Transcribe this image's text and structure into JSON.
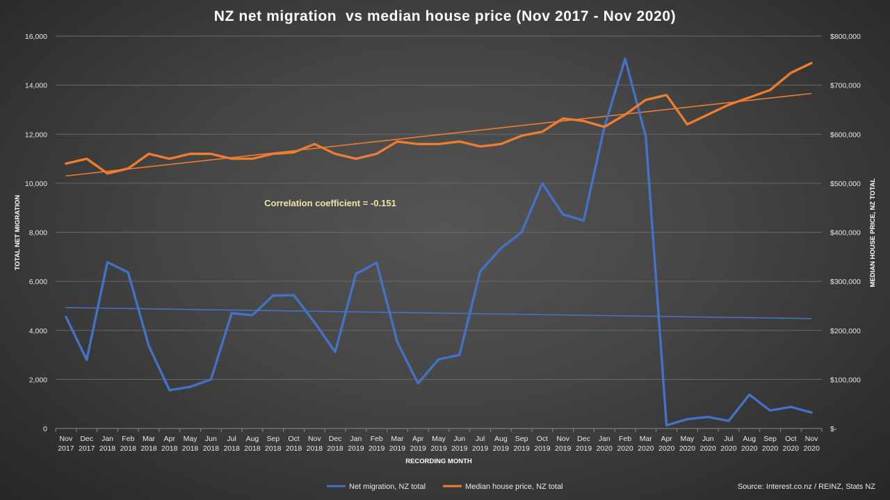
{
  "chart_data": {
    "type": "line",
    "title": "NZ net migration  vs median house price (Nov 2017 - Nov 2020)",
    "xlabel": "RECORDING MONTH",
    "ylabel_left": "TOTAL NET MIGRATION",
    "ylabel_right": "MEDIAN HOUSE PRICE, NZ TOTAL",
    "ylim_left": [
      0,
      16000
    ],
    "ylim_right": [
      0,
      800000
    ],
    "yticks_left": [
      "0",
      "2,000",
      "4,000",
      "6,000",
      "8,000",
      "10,000",
      "12,000",
      "14,000",
      "16,000"
    ],
    "yticks_right": [
      "$-",
      "$100,000",
      "$200,000",
      "$300,000",
      "$400,000",
      "$500,000",
      "$600,000",
      "$700,000",
      "$800,000"
    ],
    "grid": true,
    "legend_position": "bottom",
    "categories": [
      [
        "Nov",
        "2017"
      ],
      [
        "Dec",
        "2017"
      ],
      [
        "Jan",
        "2018"
      ],
      [
        "Feb",
        "2018"
      ],
      [
        "Mar",
        "2018"
      ],
      [
        "Apr",
        "2018"
      ],
      [
        "May",
        "2018"
      ],
      [
        "Jun",
        "2018"
      ],
      [
        "Jul",
        "2018"
      ],
      [
        "Aug",
        "2018"
      ],
      [
        "Sep",
        "2018"
      ],
      [
        "Oct",
        "2018"
      ],
      [
        "Nov",
        "2018"
      ],
      [
        "Dec",
        "2018"
      ],
      [
        "Jan",
        "2019"
      ],
      [
        "Feb",
        "2019"
      ],
      [
        "Mar",
        "2019"
      ],
      [
        "Apr",
        "2019"
      ],
      [
        "May",
        "2019"
      ],
      [
        "Jun",
        "2019"
      ],
      [
        "Jul",
        "2019"
      ],
      [
        "Aug",
        "2019"
      ],
      [
        "Sep",
        "2019"
      ],
      [
        "Oct",
        "2019"
      ],
      [
        "Nov",
        "2019"
      ],
      [
        "Dec",
        "2019"
      ],
      [
        "Jan",
        "2020"
      ],
      [
        "Feb",
        "2020"
      ],
      [
        "Mar",
        "2020"
      ],
      [
        "Apr",
        "2020"
      ],
      [
        "May",
        "2020"
      ],
      [
        "Jun",
        "2020"
      ],
      [
        "Jul",
        "2020"
      ],
      [
        "Aug",
        "2020"
      ],
      [
        "Sep",
        "2020"
      ],
      [
        "Oct",
        "2020"
      ],
      [
        "Nov",
        "2020"
      ]
    ],
    "series": [
      {
        "name": "Net migration, NZ total",
        "axis": "left",
        "color": "#4472c4",
        "values": [
          4550,
          2800,
          6780,
          6370,
          3370,
          1560,
          1700,
          2000,
          4700,
          4620,
          5420,
          5440,
          4320,
          3120,
          6300,
          6760,
          3520,
          1840,
          2820,
          3000,
          6400,
          7350,
          8000,
          10000,
          8730,
          8480,
          12300,
          15080,
          11900,
          130,
          380,
          470,
          310,
          1380,
          730,
          880,
          650
        ],
        "trendline": {
          "start": 4930,
          "end": 4480
        }
      },
      {
        "name": "Median house price, NZ total",
        "axis": "right",
        "color": "#ed7d31",
        "values": [
          540000,
          550000,
          520000,
          530000,
          560000,
          550000,
          560000,
          560000,
          550000,
          550000,
          560000,
          563000,
          580000,
          560000,
          550000,
          560000,
          585000,
          580000,
          580000,
          585000,
          575000,
          580000,
          597000,
          605000,
          632000,
          627000,
          615000,
          640000,
          670000,
          680000,
          620000,
          640000,
          660000,
          675000,
          690000,
          725000,
          745000
        ],
        "trendline": {
          "start": 515000,
          "end": 683000
        }
      }
    ],
    "annotation": "Correlation coefficient = -0.151",
    "source": "Source: Interest.co.nz / REINZ, Stats NZ"
  }
}
